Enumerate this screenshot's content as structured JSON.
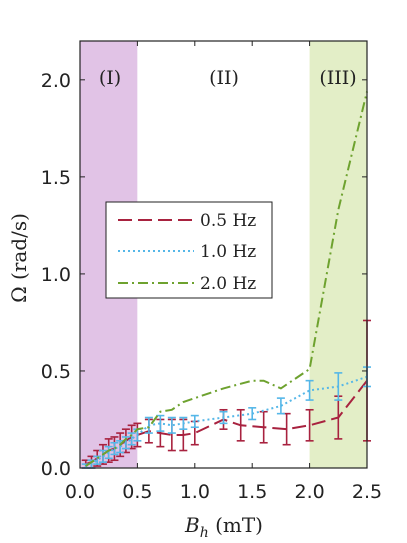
{
  "chart_data": {
    "type": "line",
    "xlabel_main": "B",
    "xlabel_sub": "h",
    "xlabel_unit": " (mT)",
    "ylabel": "Ω (rad/s)",
    "xlim": [
      0,
      2.5
    ],
    "ylim": [
      0,
      2.2
    ],
    "xticks": [
      "0.0",
      "0.5",
      "1.0",
      "1.5",
      "2.0",
      "2.5"
    ],
    "xtick_values": [
      0,
      0.5,
      1.0,
      1.5,
      2.0,
      2.5
    ],
    "yticks": [
      "0.0",
      "0.5",
      "1.0",
      "1.5",
      "2.0"
    ],
    "ytick_values": [
      0,
      0.5,
      1.0,
      1.5,
      2.0
    ],
    "regions": [
      {
        "label": "(I)",
        "x0": 0,
        "x1": 0.5,
        "color": "#e1c3e6"
      },
      {
        "label": "(II)",
        "x0": 0.5,
        "x1": 2.0,
        "color": "#ffffff"
      },
      {
        "label": "(III)",
        "x0": 2.0,
        "x1": 2.5,
        "color": "#e3eec7"
      }
    ],
    "legend_position": "center-left",
    "series": [
      {
        "name": "0.5 Hz",
        "color": "#a8223f",
        "style": "dashed",
        "x": [
          0.05,
          0.1,
          0.15,
          0.2,
          0.25,
          0.3,
          0.35,
          0.4,
          0.45,
          0.5,
          0.6,
          0.7,
          0.8,
          0.9,
          1.0,
          1.25,
          1.4,
          1.6,
          1.8,
          2.0,
          2.25,
          2.5
        ],
        "y": [
          0.02,
          0.03,
          0.05,
          0.07,
          0.09,
          0.1,
          0.12,
          0.14,
          0.16,
          0.17,
          0.19,
          0.18,
          0.17,
          0.17,
          0.18,
          0.25,
          0.22,
          0.21,
          0.2,
          0.22,
          0.26,
          0.45
        ],
        "err": [
          0.02,
          0.03,
          0.04,
          0.05,
          0.06,
          0.06,
          0.06,
          0.06,
          0.06,
          0.06,
          0.06,
          0.07,
          0.08,
          0.08,
          0.06,
          0.05,
          0.08,
          0.08,
          0.08,
          0.08,
          0.11,
          0.31
        ]
      },
      {
        "name": "1.0 Hz",
        "color": "#55b7e8",
        "style": "dotted",
        "x": [
          0.05,
          0.1,
          0.15,
          0.2,
          0.25,
          0.3,
          0.35,
          0.4,
          0.45,
          0.5,
          0.6,
          0.7,
          0.8,
          0.9,
          1.0,
          1.25,
          1.5,
          1.75,
          2.0,
          2.25,
          2.5
        ],
        "y": [
          0.01,
          0.02,
          0.04,
          0.06,
          0.08,
          0.1,
          0.11,
          0.13,
          0.15,
          0.17,
          0.22,
          0.23,
          0.22,
          0.23,
          0.24,
          0.26,
          0.28,
          0.32,
          0.4,
          0.42,
          0.47
        ],
        "err": [
          0.01,
          0.02,
          0.02,
          0.03,
          0.03,
          0.03,
          0.03,
          0.03,
          0.03,
          0.03,
          0.04,
          0.04,
          0.04,
          0.03,
          0.03,
          0.03,
          0.03,
          0.04,
          0.05,
          0.07,
          0.05
        ]
      },
      {
        "name": "2.0 Hz",
        "color": "#6ea22f",
        "style": "dashdot",
        "x": [
          0.05,
          0.1,
          0.15,
          0.2,
          0.25,
          0.3,
          0.35,
          0.4,
          0.45,
          0.5,
          0.6,
          0.7,
          0.8,
          0.9,
          1.0,
          1.25,
          1.5,
          1.6,
          1.75,
          2.0,
          2.25,
          2.5
        ],
        "y": [
          0.01,
          0.03,
          0.05,
          0.07,
          0.09,
          0.1,
          0.12,
          0.15,
          0.17,
          0.2,
          0.21,
          0.29,
          0.3,
          0.34,
          0.36,
          0.41,
          0.45,
          0.45,
          0.41,
          0.51,
          1.33,
          1.94
        ]
      }
    ]
  }
}
